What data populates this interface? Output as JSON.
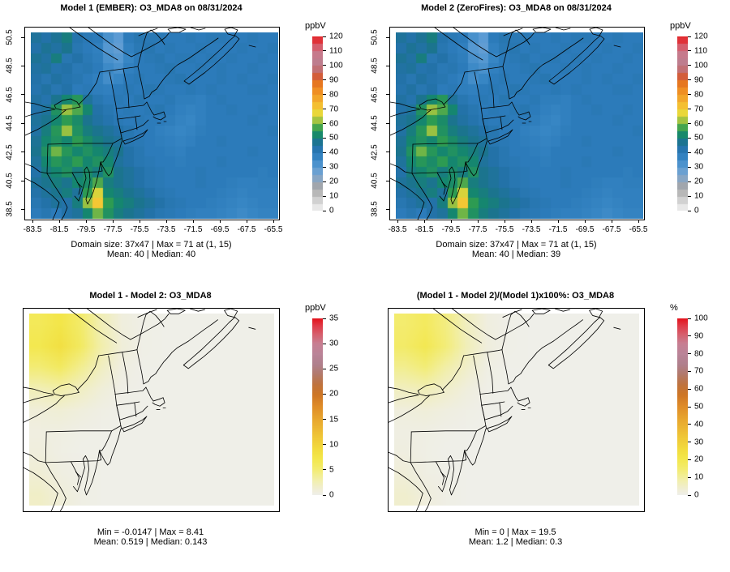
{
  "figure": {
    "background": "#ffffff",
    "description": "Four-panel spatial model comparison of O3_MDA8 for 08/31/2024 over the northeastern US"
  },
  "axes": {
    "y_tick_labels": [
      "50.5",
      "48.5",
      "46.5",
      "44.5",
      "42.5",
      "40.5",
      "38.5"
    ],
    "x_tick_labels": [
      "-83.5",
      "-81.5",
      "-79.5",
      "-77.5",
      "-75.5",
      "-73.5",
      "-71.5",
      "-69.5",
      "-67.5",
      "-65.5"
    ]
  },
  "chart_data": [
    {
      "type": "heatmap",
      "title": "Model 1 (EMBER): O3_MDA8 on 08/31/2024",
      "unit": "ppbV",
      "vmin": 0,
      "vmax": 120,
      "colorbar_ticks": [
        120,
        110,
        100,
        90,
        80,
        70,
        60,
        50,
        40,
        30,
        20,
        10,
        0
      ],
      "stats_line1": "Domain size: 37x47 | Max = 71 at (1, 15)",
      "stats_line2": "Mean: 40 |  Median: 40",
      "stats": {
        "domain_size": "37x47",
        "max": 71,
        "max_at": "(1, 15)",
        "mean": 40,
        "median": 40
      },
      "grid_ref": "o3_model1",
      "colormap_ref": "conc",
      "colorbar_band": 5
    },
    {
      "type": "heatmap",
      "title": "Model 2 (ZeroFires): O3_MDA8 on 08/31/2024",
      "unit": "ppbV",
      "vmin": 0,
      "vmax": 120,
      "colorbar_ticks": [
        120,
        110,
        100,
        90,
        80,
        70,
        60,
        50,
        40,
        30,
        20,
        10,
        0
      ],
      "stats_line1": "Domain size: 37x47 | Max = 71 at (1, 15)",
      "stats_line2": "Mean: 40 |  Median: 39",
      "stats": {
        "domain_size": "37x47",
        "max": 71,
        "max_at": "(1, 15)",
        "mean": 40,
        "median": 39
      },
      "grid_ref": "o3_model1",
      "colormap_ref": "conc",
      "colorbar_band": 5
    },
    {
      "type": "heatmap",
      "title": "Model 1 - Model 2: O3_MDA8",
      "unit": "ppbV",
      "vmin": 0,
      "vmax": 35,
      "colorbar_ticks": [
        35,
        30,
        25,
        20,
        15,
        10,
        5,
        0
      ],
      "stats_line1": "Min = -0.0147 | Max = 8.41",
      "stats_line2": "Mean: 0.519 |  Median: 0.143",
      "stats": {
        "min": -0.0147,
        "max": 8.41,
        "mean": 0.519,
        "median": 0.143
      },
      "grid_ref": "diff_abs",
      "colormap_ref": "diff",
      "colorbar_band": 0
    },
    {
      "type": "heatmap",
      "title": "(Model 1 - Model 2)/(Model 1)x100%: O3_MDA8",
      "unit": "%",
      "vmin": 0,
      "vmax": 100,
      "colorbar_ticks": [
        100,
        90,
        80,
        70,
        60,
        50,
        40,
        30,
        20,
        10,
        0
      ],
      "stats_line1": "Min = 0 | Max = 19.5",
      "stats_line2": "Mean: 1.2 |  Median: 0.3",
      "stats": {
        "min": 0,
        "max": 19.5,
        "mean": 1.2,
        "median": 0.3
      },
      "grid_ref": "diff_pct",
      "colormap_ref": "diff",
      "colorbar_band": 0
    }
  ],
  "grids": {
    "o3_model1": [
      [
        46,
        44,
        47,
        50,
        43,
        41,
        40,
        33,
        30,
        40,
        42,
        41,
        41,
        40,
        40,
        41,
        40,
        41,
        41,
        40,
        40,
        41,
        40,
        40
      ],
      [
        44,
        47,
        45,
        48,
        42,
        40,
        38,
        31,
        29,
        38,
        41,
        42,
        40,
        41,
        40,
        40,
        41,
        40,
        40,
        40,
        41,
        40,
        40,
        41
      ],
      [
        47,
        45,
        50,
        42,
        44,
        41,
        39,
        33,
        31,
        36,
        40,
        41,
        42,
        40,
        41,
        41,
        40,
        41,
        40,
        41,
        40,
        40,
        41,
        40
      ],
      [
        45,
        46,
        43,
        44,
        41,
        42,
        40,
        35,
        33,
        38,
        40,
        40,
        41,
        42,
        40,
        40,
        41,
        40,
        41,
        40,
        40,
        41,
        40,
        40
      ],
      [
        44,
        42,
        45,
        43,
        42,
        40,
        38,
        34,
        36,
        40,
        41,
        40,
        40,
        41,
        42,
        40,
        40,
        40,
        41,
        40,
        41,
        40,
        40,
        41
      ],
      [
        43,
        45,
        42,
        44,
        40,
        41,
        39,
        38,
        40,
        41,
        40,
        42,
        41,
        40,
        40,
        41,
        40,
        41,
        40,
        40,
        40,
        41,
        41,
        40
      ],
      [
        45,
        43,
        48,
        52,
        55,
        46,
        42,
        40,
        41,
        40,
        42,
        40,
        40,
        41,
        39,
        39,
        38,
        40,
        41,
        40,
        40,
        40,
        40,
        40
      ],
      [
        44,
        46,
        54,
        62,
        58,
        52,
        44,
        42,
        40,
        41,
        40,
        41,
        42,
        40,
        38,
        37,
        38,
        40,
        40,
        41,
        40,
        40,
        41,
        40
      ],
      [
        46,
        48,
        52,
        56,
        53,
        48,
        45,
        43,
        41,
        40,
        41,
        40,
        40,
        39,
        37,
        36,
        38,
        40,
        40,
        40,
        40,
        41,
        40,
        40
      ],
      [
        45,
        50,
        55,
        62,
        54,
        50,
        48,
        46,
        44,
        42,
        40,
        40,
        38,
        37,
        36,
        37,
        39,
        40,
        40,
        40,
        40,
        40,
        40,
        41
      ],
      [
        47,
        52,
        54,
        52,
        56,
        53,
        50,
        48,
        46,
        42,
        41,
        40,
        39,
        38,
        37,
        38,
        40,
        40,
        41,
        40,
        40,
        40,
        40,
        40
      ],
      [
        48,
        54,
        60,
        55,
        52,
        54,
        52,
        50,
        48,
        44,
        42,
        40,
        40,
        39,
        38,
        40,
        40,
        40,
        40,
        40,
        40,
        41,
        40,
        40
      ],
      [
        46,
        52,
        55,
        53,
        56,
        52,
        54,
        52,
        46,
        44,
        42,
        41,
        40,
        40,
        39,
        40,
        40,
        40,
        41,
        40,
        40,
        40,
        40,
        40
      ],
      [
        44,
        50,
        52,
        54,
        50,
        53,
        50,
        54,
        48,
        46,
        44,
        42,
        41,
        40,
        40,
        40,
        41,
        40,
        40,
        40,
        40,
        40,
        39,
        40
      ],
      [
        46,
        48,
        50,
        48,
        52,
        53,
        58,
        50,
        48,
        46,
        44,
        42,
        41,
        40,
        40,
        40,
        41,
        40,
        40,
        39,
        38,
        38,
        39,
        39
      ],
      [
        44,
        46,
        48,
        50,
        46,
        56,
        66,
        52,
        50,
        48,
        46,
        44,
        42,
        41,
        40,
        40,
        40,
        40,
        39,
        38,
        37,
        38,
        38,
        38
      ],
      [
        42,
        44,
        46,
        44,
        50,
        62,
        71,
        56,
        52,
        50,
        48,
        46,
        44,
        42,
        41,
        40,
        40,
        39,
        38,
        37,
        36,
        37,
        38,
        38
      ],
      [
        40,
        42,
        40,
        44,
        46,
        52,
        60,
        54,
        50,
        48,
        46,
        44,
        42,
        41,
        40,
        39,
        38,
        38,
        37,
        36,
        35,
        36,
        37,
        37
      ]
    ],
    "diff_abs": [
      [
        6.5,
        7.5,
        5.5,
        2.5,
        0.8,
        0.3,
        0.2,
        0.2,
        0.2,
        0.2,
        0.2,
        0.2
      ],
      [
        7.0,
        8.4,
        6.0,
        3.0,
        1.0,
        0.3,
        0.2,
        0.2,
        0.2,
        0.2,
        0.2,
        0.2
      ],
      [
        5.0,
        6.0,
        4.0,
        2.0,
        0.6,
        0.2,
        0.2,
        0.2,
        0.2,
        0.2,
        0.2,
        0.2
      ],
      [
        2.5,
        3.0,
        2.0,
        1.0,
        0.3,
        0.2,
        0.2,
        0.2,
        0.2,
        0.2,
        0.2,
        0.2
      ],
      [
        1.0,
        1.2,
        0.8,
        0.4,
        0.2,
        0.2,
        0.2,
        0.2,
        0.2,
        0.2,
        0.2,
        0.2
      ],
      [
        0.6,
        0.5,
        0.3,
        0.2,
        0.2,
        0.2,
        0.2,
        0.2,
        0.2,
        0.2,
        0.2,
        0.2
      ],
      [
        0.8,
        0.4,
        0.2,
        0.2,
        0.2,
        0.2,
        0.2,
        0.2,
        0.2,
        0.2,
        0.2,
        0.2
      ],
      [
        1.2,
        0.6,
        0.3,
        0.2,
        0.2,
        0.2,
        0.2,
        0.2,
        0.2,
        0.2,
        0.2,
        0.2
      ],
      [
        1.8,
        1.0,
        0.4,
        0.2,
        0.2,
        0.2,
        0.2,
        0.2,
        0.2,
        0.2,
        0.2,
        0.2
      ]
    ],
    "diff_pct": [
      [
        15,
        17.5,
        13,
        6,
        2,
        0.7,
        0.5,
        0.5,
        0.5,
        0.5,
        0.5,
        0.5
      ],
      [
        16,
        19.5,
        14,
        7,
        2.3,
        0.7,
        0.5,
        0.5,
        0.5,
        0.5,
        0.5,
        0.5
      ],
      [
        11.5,
        14,
        9,
        4.6,
        1.4,
        0.5,
        0.5,
        0.5,
        0.5,
        0.5,
        0.5,
        0.5
      ],
      [
        6,
        7,
        4.6,
        2.3,
        0.7,
        0.5,
        0.5,
        0.5,
        0.5,
        0.5,
        0.5,
        0.5
      ],
      [
        2.3,
        2.8,
        1.8,
        1,
        0.5,
        0.5,
        0.5,
        0.5,
        0.5,
        0.5,
        0.5,
        0.5
      ],
      [
        1.4,
        1.2,
        0.7,
        0.5,
        0.5,
        0.5,
        0.5,
        0.5,
        0.5,
        0.5,
        0.5,
        0.5
      ],
      [
        1.8,
        1,
        0.5,
        0.5,
        0.5,
        0.5,
        0.5,
        0.5,
        0.5,
        0.5,
        0.5,
        0.5
      ],
      [
        2.8,
        1.4,
        0.7,
        0.5,
        0.5,
        0.5,
        0.5,
        0.5,
        0.5,
        0.5,
        0.5,
        0.5
      ],
      [
        4.2,
        2.3,
        1,
        0.5,
        0.5,
        0.5,
        0.5,
        0.5,
        0.5,
        0.5,
        0.5,
        0.5
      ]
    ]
  },
  "colormaps": {
    "conc": [
      [
        0.0,
        "#F4F4F4"
      ],
      [
        0.067,
        "#CFCFCF"
      ],
      [
        0.133,
        "#A6A6A6"
      ],
      [
        0.167,
        "#98A7B8"
      ],
      [
        0.2,
        "#7FA6CC"
      ],
      [
        0.25,
        "#5B9BD4"
      ],
      [
        0.3,
        "#3786C4"
      ],
      [
        0.333,
        "#2C7BBA"
      ],
      [
        0.367,
        "#2372A8"
      ],
      [
        0.4,
        "#1B748E"
      ],
      [
        0.433,
        "#15866F"
      ],
      [
        0.467,
        "#2D9B52"
      ],
      [
        0.5,
        "#6FB547"
      ],
      [
        0.533,
        "#C1CC3E"
      ],
      [
        0.567,
        "#EFD938"
      ],
      [
        0.6,
        "#F4C132"
      ],
      [
        0.65,
        "#F2A42A"
      ],
      [
        0.7,
        "#EE8822"
      ],
      [
        0.75,
        "#E06A1E"
      ],
      [
        0.775,
        "#D05A40"
      ],
      [
        0.8,
        "#C46A68"
      ],
      [
        0.833,
        "#BB7A8A"
      ],
      [
        0.875,
        "#C08092"
      ],
      [
        0.917,
        "#CC7486"
      ],
      [
        0.958,
        "#DC4A56"
      ],
      [
        1.0,
        "#E31A1C"
      ]
    ],
    "diff": [
      [
        0.0,
        "#EFEFEC"
      ],
      [
        0.03,
        "#F0EED8"
      ],
      [
        0.09,
        "#F2EFA8"
      ],
      [
        0.15,
        "#F3EC6E"
      ],
      [
        0.21,
        "#F3E74A"
      ],
      [
        0.26,
        "#F2DC3E"
      ],
      [
        0.34,
        "#EFC436"
      ],
      [
        0.43,
        "#E8A72E"
      ],
      [
        0.51,
        "#DE8A28"
      ],
      [
        0.57,
        "#CE7626"
      ],
      [
        0.63,
        "#BF7340"
      ],
      [
        0.69,
        "#B27A6E"
      ],
      [
        0.74,
        "#AF7F8C"
      ],
      [
        0.8,
        "#BA8498"
      ],
      [
        0.86,
        "#C87E92"
      ],
      [
        0.91,
        "#D6606E"
      ],
      [
        0.96,
        "#E03A48"
      ],
      [
        1.0,
        "#E3141E"
      ]
    ]
  }
}
